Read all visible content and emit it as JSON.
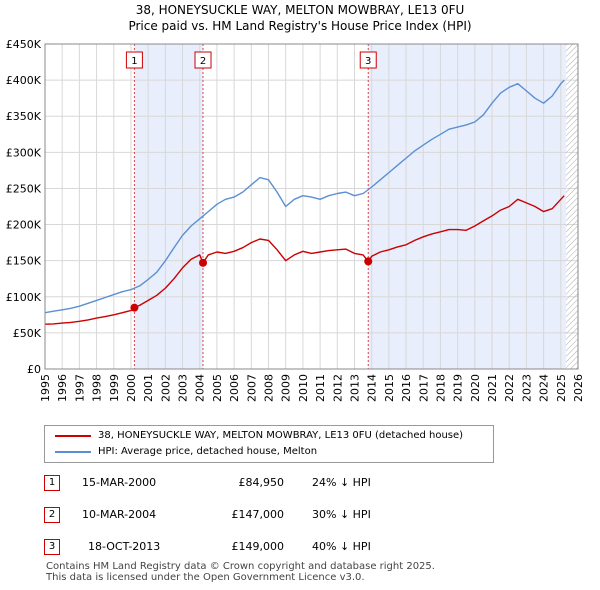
{
  "title_line1": "38, HONEYSUCKLE WAY, MELTON MOWBRAY, LE13 0FU",
  "title_line2": "Price paid vs. HM Land Registry's House Price Index (HPI)",
  "chart_data": {
    "type": "line",
    "title": "38, HONEYSUCKLE WAY, MELTON MOWBRAY, LE13 0FU — Price paid vs. HM Land Registry's House Price Index (HPI)",
    "xlim": [
      1995,
      2026
    ],
    "ylim": [
      0,
      450000
    ],
    "x_ticks": [
      1995,
      1996,
      1997,
      1998,
      1999,
      2000,
      2001,
      2002,
      2003,
      2004,
      2005,
      2006,
      2007,
      2008,
      2009,
      2010,
      2011,
      2012,
      2013,
      2014,
      2015,
      2016,
      2017,
      2018,
      2019,
      2020,
      2021,
      2022,
      2023,
      2024,
      2025,
      2026
    ],
    "y_ticks": [
      {
        "value": 0,
        "label": "£0"
      },
      {
        "value": 50000,
        "label": "£50K"
      },
      {
        "value": 100000,
        "label": "£100K"
      },
      {
        "value": 150000,
        "label": "£150K"
      },
      {
        "value": 200000,
        "label": "£200K"
      },
      {
        "value": 250000,
        "label": "£250K"
      },
      {
        "value": 300000,
        "label": "£300K"
      },
      {
        "value": 350000,
        "label": "£350K"
      },
      {
        "value": 400000,
        "label": "£400K"
      },
      {
        "value": 450000,
        "label": "£450K"
      }
    ],
    "grid": true,
    "shaded_periods": [
      [
        2000.2,
        2004.19
      ],
      [
        2013.8,
        2025.3
      ]
    ],
    "hatched_future_from": 2025.3,
    "series": [
      {
        "name": "38, HONEYSUCKLE WAY, MELTON MOWBRAY, LE13 0FU (detached house)",
        "color": "#cc0000",
        "x": [
          1995.0,
          1995.5,
          1996.0,
          1996.5,
          1997.0,
          1997.5,
          1998.0,
          1998.5,
          1999.0,
          1999.5,
          2000.0,
          2000.2,
          2000.5,
          2001.0,
          2001.5,
          2002.0,
          2002.5,
          2003.0,
          2003.5,
          2004.0,
          2004.19,
          2004.5,
          2005.0,
          2005.5,
          2006.0,
          2006.5,
          2007.0,
          2007.5,
          2008.0,
          2008.5,
          2009.0,
          2009.5,
          2010.0,
          2010.5,
          2011.0,
          2011.5,
          2012.0,
          2012.5,
          2013.0,
          2013.5,
          2013.8,
          2014.0,
          2014.5,
          2015.0,
          2015.5,
          2016.0,
          2016.5,
          2017.0,
          2017.5,
          2018.0,
          2018.5,
          2019.0,
          2019.5,
          2020.0,
          2020.5,
          2021.0,
          2021.5,
          2022.0,
          2022.5,
          2023.0,
          2023.5,
          2024.0,
          2024.5,
          2025.0,
          2025.2
        ],
        "y": [
          62000,
          62500,
          63500,
          64500,
          66000,
          68000,
          70500,
          72500,
          75000,
          78000,
          81000,
          84950,
          88000,
          95000,
          102000,
          112000,
          125000,
          140000,
          152000,
          158000,
          147000,
          158000,
          162000,
          160000,
          163000,
          168000,
          175000,
          180000,
          178000,
          165000,
          150000,
          158000,
          163000,
          160000,
          162000,
          164000,
          165000,
          166000,
          160000,
          158000,
          149000,
          156000,
          162000,
          165000,
          169000,
          172000,
          178000,
          183000,
          187000,
          190000,
          193000,
          193000,
          192000,
          198000,
          205000,
          212000,
          220000,
          225000,
          235000,
          230000,
          225000,
          218000,
          222000,
          235000,
          240000
        ]
      },
      {
        "name": "HPI: Average price, detached house, Melton",
        "color": "#5b8fd4",
        "x": [
          1995.0,
          1995.5,
          1996.0,
          1996.5,
          1997.0,
          1997.5,
          1998.0,
          1998.5,
          1999.0,
          1999.5,
          2000.0,
          2000.5,
          2001.0,
          2001.5,
          2002.0,
          2002.5,
          2003.0,
          2003.5,
          2004.0,
          2004.5,
          2005.0,
          2005.5,
          2006.0,
          2006.5,
          2007.0,
          2007.5,
          2008.0,
          2008.5,
          2009.0,
          2009.5,
          2010.0,
          2010.5,
          2011.0,
          2011.5,
          2012.0,
          2012.5,
          2013.0,
          2013.5,
          2014.0,
          2014.5,
          2015.0,
          2015.5,
          2016.0,
          2016.5,
          2017.0,
          2017.5,
          2018.0,
          2018.5,
          2019.0,
          2019.5,
          2020.0,
          2020.5,
          2021.0,
          2021.5,
          2022.0,
          2022.5,
          2023.0,
          2023.5,
          2024.0,
          2024.5,
          2025.0,
          2025.2
        ],
        "y": [
          78000,
          80000,
          82000,
          84000,
          87000,
          91000,
          95000,
          99000,
          103000,
          107000,
          110000,
          115000,
          124000,
          134000,
          150000,
          168000,
          185000,
          198000,
          208000,
          218000,
          228000,
          235000,
          238000,
          245000,
          255000,
          265000,
          262000,
          245000,
          225000,
          235000,
          240000,
          238000,
          235000,
          240000,
          243000,
          245000,
          240000,
          243000,
          252000,
          262000,
          272000,
          282000,
          292000,
          302000,
          310000,
          318000,
          325000,
          332000,
          335000,
          338000,
          342000,
          352000,
          368000,
          382000,
          390000,
          395000,
          385000,
          375000,
          368000,
          378000,
          395000,
          400000
        ]
      }
    ],
    "sales": [
      {
        "label": "1",
        "x": 2000.2,
        "price": 84950
      },
      {
        "label": "2",
        "x": 2004.19,
        "price": 147000
      },
      {
        "label": "3",
        "x": 2013.8,
        "price": 149000
      }
    ]
  },
  "legend": {
    "property_label": "38, HONEYSUCKLE WAY, MELTON MOWBRAY, LE13 0FU (detached house)",
    "hpi_label": "HPI: Average price, detached house, Melton",
    "property_color": "#cc0000",
    "hpi_color": "#5b8fd4"
  },
  "sales_table": [
    {
      "num": "1",
      "date": "15-MAR-2000",
      "price": "£84,950",
      "hpi": "24% ↓ HPI"
    },
    {
      "num": "2",
      "date": "10-MAR-2004",
      "price": "£147,000",
      "hpi": "30% ↓ HPI"
    },
    {
      "num": "3",
      "date": "18-OCT-2013",
      "price": "£149,000",
      "hpi": "40% ↓ HPI"
    }
  ],
  "footer_line1": "Contains HM Land Registry data © Crown copyright and database right 2025.",
  "footer_line2": "This data is licensed under the Open Government Licence v3.0."
}
